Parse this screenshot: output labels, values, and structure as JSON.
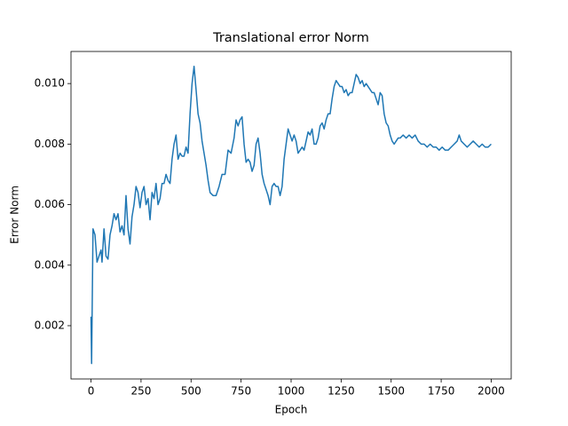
{
  "chart_data": {
    "type": "line",
    "title": "Translational error Norm",
    "x_label": "Epoch",
    "y_label": "Error Norm",
    "xlim": [
      -100,
      2100
    ],
    "xticks": [
      0,
      250,
      500,
      750,
      1000,
      1250,
      1500,
      1750,
      2000
    ],
    "ylim": [
      0.00024,
      0.01106
    ],
    "yticks": [
      0.002,
      0.004,
      0.006,
      0.008,
      {
        "value": 0.01,
        "label": "0.010"
      }
    ],
    "grid": false,
    "series": [
      {
        "color": "#1f77b4",
        "x": [
          0,
          3,
          10,
          20,
          30,
          40,
          50,
          55,
          65,
          75,
          85,
          95,
          105,
          115,
          125,
          135,
          145,
          155,
          165,
          175,
          185,
          195,
          205,
          215,
          225,
          235,
          245,
          255,
          265,
          275,
          285,
          295,
          305,
          315,
          325,
          335,
          345,
          355,
          365,
          375,
          385,
          395,
          405,
          415,
          425,
          435,
          445,
          455,
          465,
          475,
          485,
          495,
          505,
          515,
          525,
          535,
          545,
          555,
          565,
          575,
          585,
          595,
          610,
          625,
          640,
          655,
          670,
          685,
          700,
          715,
          725,
          735,
          745,
          755,
          765,
          775,
          785,
          795,
          805,
          815,
          825,
          835,
          845,
          855,
          865,
          875,
          885,
          895,
          905,
          915,
          925,
          935,
          945,
          955,
          965,
          975,
          985,
          995,
          1005,
          1015,
          1025,
          1035,
          1045,
          1055,
          1065,
          1075,
          1085,
          1095,
          1105,
          1115,
          1125,
          1135,
          1145,
          1155,
          1165,
          1175,
          1185,
          1195,
          1205,
          1215,
          1225,
          1235,
          1245,
          1255,
          1265,
          1275,
          1285,
          1295,
          1305,
          1315,
          1325,
          1335,
          1345,
          1355,
          1365,
          1375,
          1385,
          1395,
          1405,
          1415,
          1425,
          1435,
          1445,
          1455,
          1465,
          1475,
          1485,
          1495,
          1505,
          1515,
          1525,
          1535,
          1545,
          1560,
          1575,
          1590,
          1605,
          1620,
          1635,
          1650,
          1665,
          1680,
          1695,
          1710,
          1725,
          1740,
          1755,
          1770,
          1785,
          1800,
          1815,
          1830,
          1840,
          1850,
          1865,
          1880,
          1895,
          1910,
          1925,
          1940,
          1955,
          1970,
          1985,
          2000
        ],
        "values": [
          0.0023,
          0.00075,
          0.0052,
          0.005,
          0.0041,
          0.0043,
          0.0045,
          0.0041,
          0.0052,
          0.0043,
          0.0042,
          0.005,
          0.0053,
          0.0057,
          0.0055,
          0.0057,
          0.0051,
          0.0053,
          0.005,
          0.0063,
          0.0052,
          0.0047,
          0.0056,
          0.006,
          0.0066,
          0.0064,
          0.0059,
          0.0064,
          0.0066,
          0.006,
          0.0062,
          0.0055,
          0.0064,
          0.0062,
          0.0067,
          0.006,
          0.0062,
          0.0067,
          0.0067,
          0.007,
          0.0068,
          0.0067,
          0.0075,
          0.008,
          0.0083,
          0.0075,
          0.0077,
          0.0076,
          0.0076,
          0.0079,
          0.0077,
          0.009,
          0.01,
          0.01057,
          0.0098,
          0.009,
          0.0087,
          0.0081,
          0.0077,
          0.0073,
          0.0068,
          0.0064,
          0.0063,
          0.0063,
          0.0066,
          0.007,
          0.007,
          0.0078,
          0.0077,
          0.0082,
          0.0088,
          0.0086,
          0.0088,
          0.0089,
          0.008,
          0.0074,
          0.0075,
          0.0074,
          0.0071,
          0.0073,
          0.008,
          0.0082,
          0.0077,
          0.007,
          0.0067,
          0.0065,
          0.0063,
          0.006,
          0.0066,
          0.0067,
          0.0066,
          0.0066,
          0.0063,
          0.0066,
          0.0075,
          0.008,
          0.0085,
          0.0083,
          0.0081,
          0.0083,
          0.0081,
          0.0077,
          0.0078,
          0.0079,
          0.0078,
          0.0081,
          0.0084,
          0.0083,
          0.0085,
          0.008,
          0.008,
          0.0082,
          0.0086,
          0.0087,
          0.0085,
          0.0088,
          0.009,
          0.009,
          0.0095,
          0.0099,
          0.0101,
          0.01,
          0.0099,
          0.0099,
          0.0097,
          0.0098,
          0.0096,
          0.0097,
          0.0097,
          0.01,
          0.0103,
          0.0102,
          0.01,
          0.0101,
          0.0099,
          0.01,
          0.0099,
          0.0098,
          0.0097,
          0.0097,
          0.0095,
          0.0093,
          0.0097,
          0.0096,
          0.009,
          0.0087,
          0.0086,
          0.0083,
          0.0081,
          0.008,
          0.0081,
          0.0082,
          0.0082,
          0.0083,
          0.0082,
          0.0083,
          0.0082,
          0.0083,
          0.0081,
          0.008,
          0.008,
          0.0079,
          0.008,
          0.0079,
          0.0079,
          0.0078,
          0.0079,
          0.0078,
          0.0078,
          0.0079,
          0.008,
          0.0081,
          0.0083,
          0.0081,
          0.008,
          0.0079,
          0.008,
          0.0081,
          0.008,
          0.0079,
          0.008,
          0.0079,
          0.0079,
          0.008
        ]
      }
    ]
  }
}
